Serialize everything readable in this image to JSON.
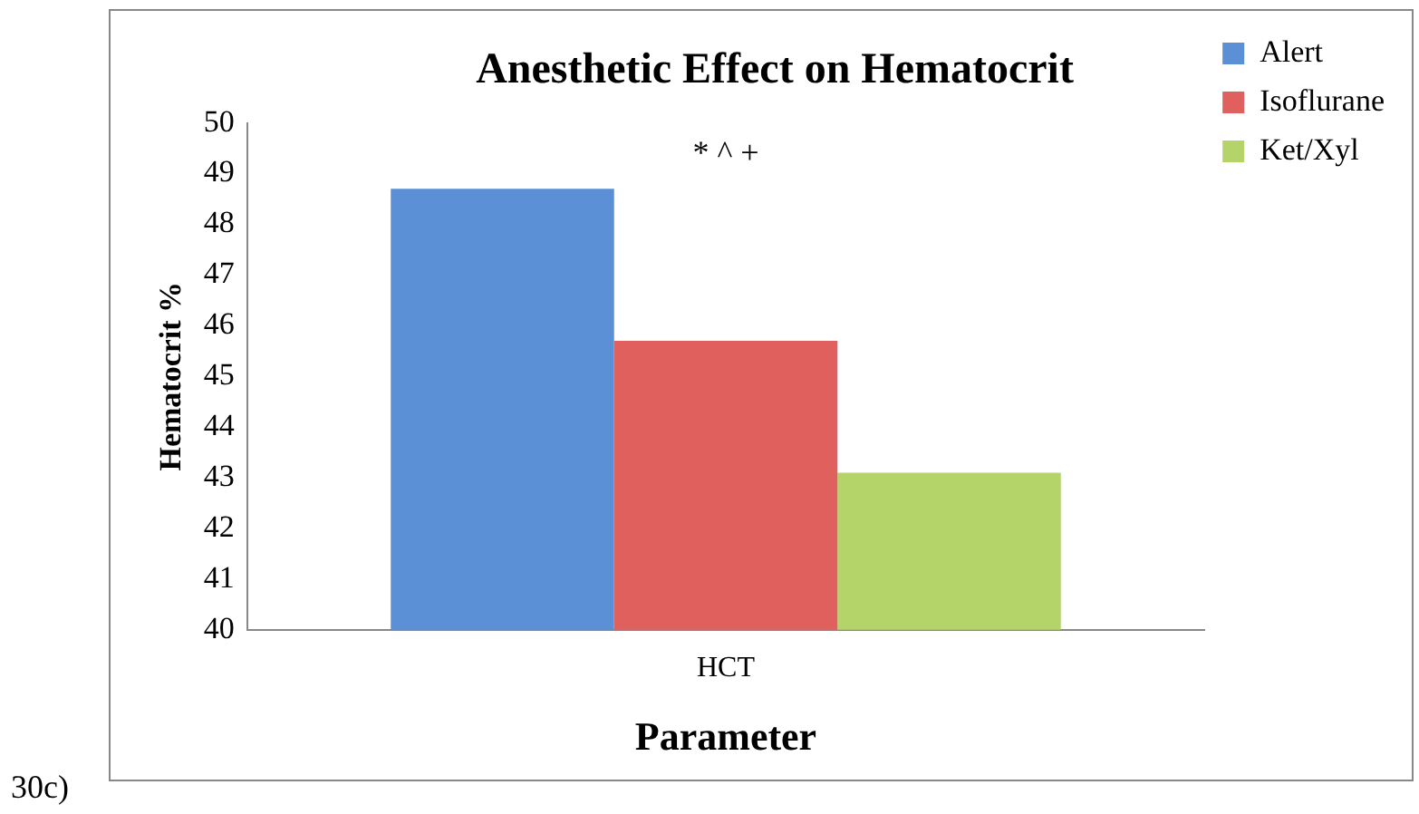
{
  "chart_data": {
    "type": "bar",
    "title": "Anesthetic Effect on Hematocrit",
    "xlabel": "Parameter",
    "ylabel": "Hematocrit %",
    "categories": [
      "HCT"
    ],
    "series": [
      {
        "name": "Alert",
        "color": "#5b8fd6",
        "values": [
          48.7
        ]
      },
      {
        "name": "Isoflurane",
        "color": "#e0605e",
        "values": [
          45.7
        ]
      },
      {
        "name": "Ket/Xyl",
        "color": "#b4d46a",
        "values": [
          43.1
        ]
      }
    ],
    "ylim": [
      40,
      50
    ],
    "yticks": [
      40,
      41,
      42,
      43,
      44,
      45,
      46,
      47,
      48,
      49,
      50
    ],
    "grid": false,
    "legend": "top right",
    "annotations": [
      "* ^ +",
      "30c)"
    ]
  }
}
